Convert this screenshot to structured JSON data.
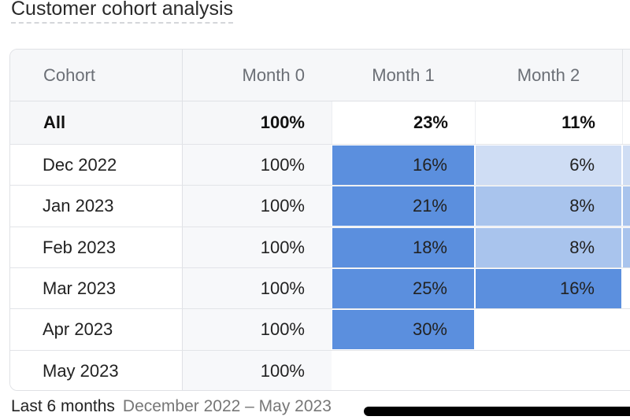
{
  "title": "Customer cohort analysis",
  "columns": [
    "Cohort",
    "Month 0",
    "Month 1",
    "Month 2"
  ],
  "all_row": {
    "label": "All",
    "values": [
      "100%",
      "23%",
      "11%"
    ]
  },
  "rows": [
    {
      "label": "Dec 2022",
      "values": [
        "100%",
        "16%",
        "6%"
      ]
    },
    {
      "label": "Jan 2023",
      "values": [
        "100%",
        "21%",
        "8%"
      ]
    },
    {
      "label": "Feb 2023",
      "values": [
        "100%",
        "18%",
        "8%"
      ]
    },
    {
      "label": "Mar 2023",
      "values": [
        "100%",
        "25%",
        "16%"
      ]
    },
    {
      "label": "Apr 2023",
      "values": [
        "100%",
        "30%",
        null
      ]
    },
    {
      "label": "May 2023",
      "values": [
        "100%",
        null,
        null
      ]
    }
  ],
  "colors": {
    "high": "#5b8fde",
    "medium": "#a9c4ed",
    "low": "#cfddf4"
  },
  "footer": {
    "period": "Last 6 months",
    "range": "December 2022 – May 2023"
  }
}
